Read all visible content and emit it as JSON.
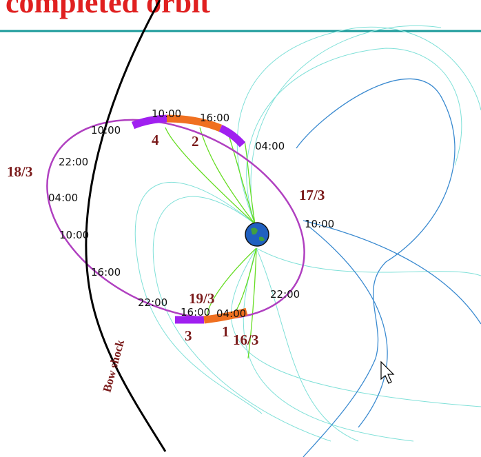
{
  "title": "completed orbit",
  "times": [
    "10:00",
    "16:00",
    "10:00",
    "04:00",
    "22:00",
    "04:00",
    "10:00",
    "10:00",
    "16:00",
    "22:00",
    "22:00",
    "16:00",
    "04:00"
  ],
  "dates": [
    "18/3",
    "17/3",
    "19/3",
    "16/3"
  ],
  "segments": [
    "4",
    "2",
    "3",
    "1"
  ],
  "bow_shock_label": "Bow shock"
}
